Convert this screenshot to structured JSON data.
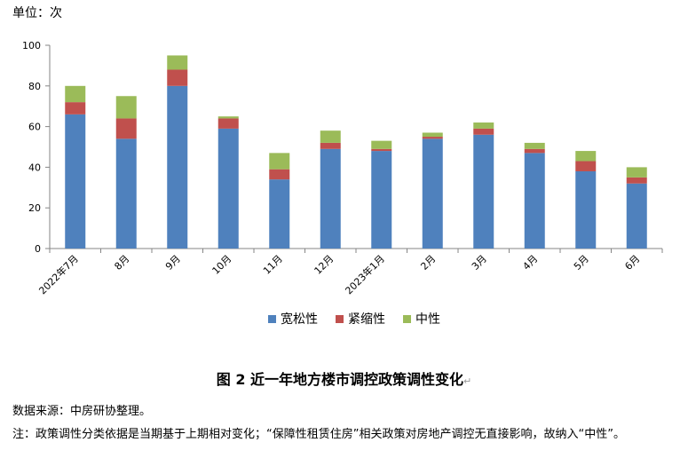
{
  "unit_label": "单位：次",
  "caption": {
    "title": "图 2  近一年地方楼市调控政策调性变化",
    "return_mark": "↵"
  },
  "source": "数据来源：中房研协整理。",
  "note": "注：政策调性分类依据是当期基于上期相对变化；“保障性租赁住房”相关政策对房地产调控无直接影响，故纳入“中性”。",
  "chart_data": {
    "type": "bar",
    "stacked": true,
    "categories": [
      "2022年7月",
      "8月",
      "9月",
      "10月",
      "11月",
      "12月",
      "2023年1月",
      "2月",
      "3月",
      "4月",
      "5月",
      "6月"
    ],
    "series": [
      {
        "name": "宽松性",
        "color": "#4F81BD",
        "values": [
          66,
          54,
          80,
          59,
          34,
          49,
          48,
          54,
          56,
          47,
          38,
          32
        ]
      },
      {
        "name": "紧缩性",
        "color": "#C0504D",
        "values": [
          6,
          10,
          8,
          5,
          5,
          3,
          1,
          1,
          3,
          2,
          5,
          3
        ]
      },
      {
        "name": "中性",
        "color": "#9BBB59",
        "values": [
          8,
          11,
          7,
          1,
          8,
          6,
          4,
          2,
          3,
          3,
          5,
          5
        ]
      }
    ],
    "ylim": [
      0,
      100
    ],
    "yticks": [
      0,
      20,
      40,
      60,
      80,
      100
    ],
    "legend_position": "bottom",
    "grid": false
  }
}
